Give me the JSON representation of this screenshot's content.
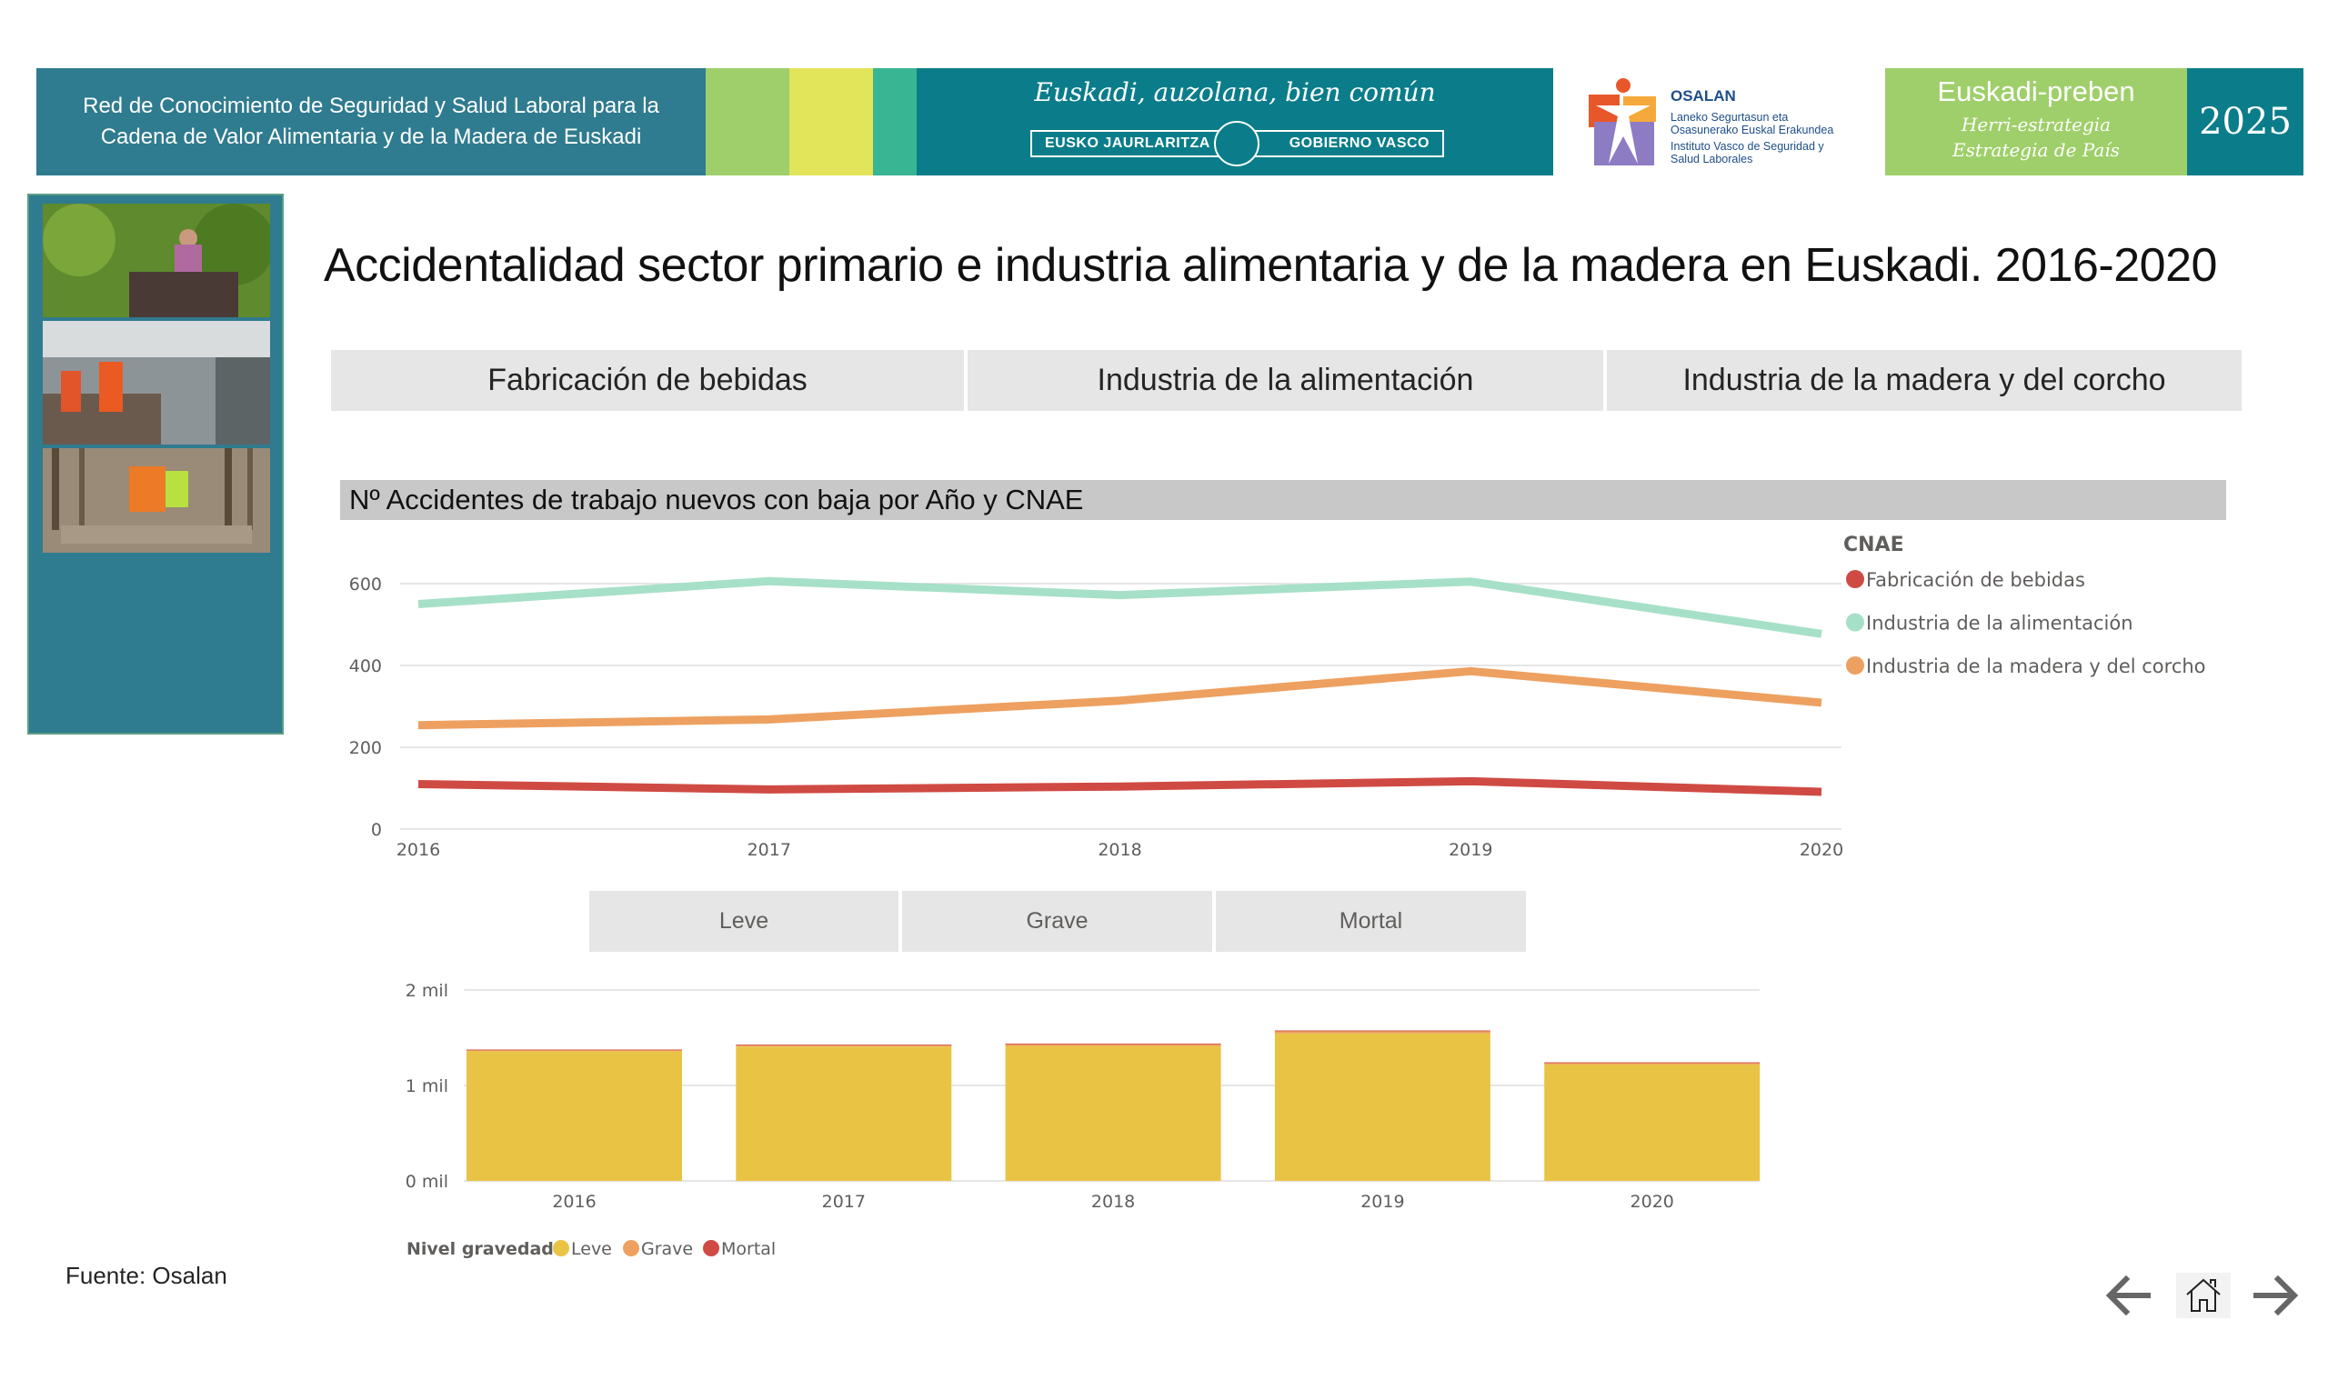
{
  "header": {
    "network_line1": "Red de Conocimiento de Seguridad y Salud Laboral para la",
    "network_line2": "Cadena de Valor Alimentaria y de la Madera de Euskadi",
    "gov_motto": "Euskadi, auzolana, bien común",
    "gov_left": "EUSKO JAURLARITZA",
    "gov_right": "GOBIERNO VASCO",
    "osalan_name": "OSALAN",
    "osalan_line1": "Laneko Segurtasun eta",
    "osalan_line2": "Osasunerako Euskal Erakundea",
    "osalan_line3": "Instituto Vasco de Seguridad y",
    "osalan_line4": "Salud Laborales",
    "preben_title": "Euskadi-preben",
    "preben_sub1": "Herri-estrategia",
    "preben_sub2": "Estrategia de País",
    "year": "2025",
    "colors": {
      "teal": "#2f7b8f",
      "green": "#9fcf6a",
      "yellow": "#e2e45a",
      "teal_green": "#38b593",
      "dark_teal": "#0b7d8a"
    }
  },
  "page": {
    "title": "Accidentalidad sector primario e industria alimentaria y de la madera en Euskadi. 2016-2020",
    "source": "Fuente: Osalan"
  },
  "tabs": [
    {
      "label": "Fabricación de bebidas"
    },
    {
      "label": "Industria de la alimentación"
    },
    {
      "label": "Industria de la madera y del corcho"
    }
  ],
  "severity_buttons": [
    {
      "label": "Leve"
    },
    {
      "label": "Grave"
    },
    {
      "label": "Mortal"
    }
  ],
  "nav": {
    "back": "back-arrow-icon",
    "home": "home-icon",
    "forward": "forward-arrow-icon"
  },
  "chart_data": [
    {
      "type": "line",
      "title": "Nº Accidentes de trabajo nuevos con baja por Año y CNAE",
      "x": [
        "2016",
        "2017",
        "2018",
        "2019",
        "2020"
      ],
      "yticks": [
        "0",
        "200",
        "400",
        "600"
      ],
      "ylim": [
        0,
        600
      ],
      "grid": true,
      "legend_title": "CNAE",
      "legend_position": "right",
      "series": [
        {
          "name": "Fabricación de bebidas",
          "color": "#d04a44",
          "values": [
            110,
            97,
            104,
            117,
            91
          ]
        },
        {
          "name": "Industria de la alimentación",
          "color": "#a6e0c8",
          "values": [
            550,
            606,
            572,
            605,
            477
          ]
        },
        {
          "name": "Industria de la madera y del corcho",
          "color": "#eea060",
          "values": [
            254,
            268,
            314,
            386,
            309
          ]
        }
      ]
    },
    {
      "type": "bar",
      "stacked": true,
      "categories": [
        "2016",
        "2017",
        "2018",
        "2019",
        "2020"
      ],
      "yticks": [
        "0 mil",
        "1 mil",
        "2 mil"
      ],
      "ylim": [
        0,
        2000
      ],
      "grid": true,
      "legend_title": "Nivel gravedad",
      "legend_position": "bottom-left",
      "series": [
        {
          "name": "Leve",
          "color": "#e9c444",
          "values": [
            1360,
            1408,
            1411,
            1545,
            1220
          ]
        },
        {
          "name": "Grave",
          "color": "#eea060",
          "values": [
            15,
            18,
            27,
            30,
            21
          ]
        },
        {
          "name": "Mortal",
          "color": "#d04a44",
          "values": [
            1,
            1,
            1,
            1,
            1
          ]
        }
      ]
    }
  ]
}
